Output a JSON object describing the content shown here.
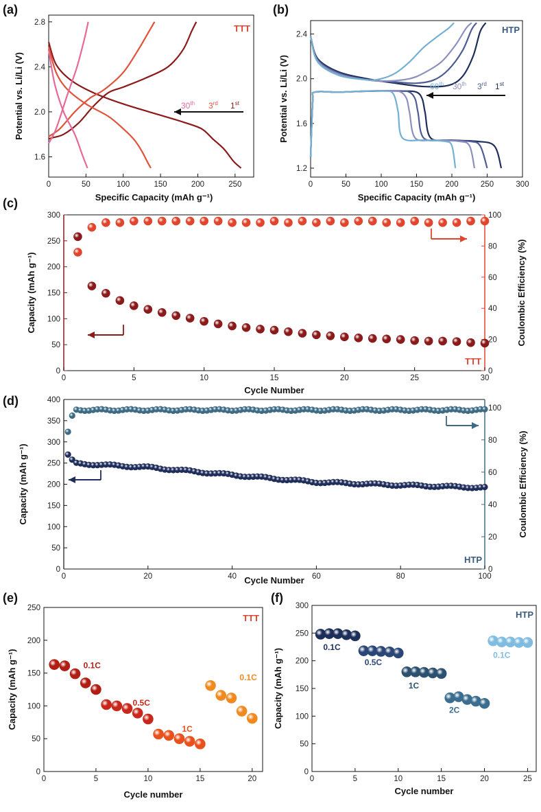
{
  "chart_data": [
    {
      "panel": "a",
      "panel_label": "(a)",
      "type": "line",
      "tag": "TTT",
      "xlabel": "Specific Capacity (mAh g⁻¹)",
      "ylabel": "Potential vs. Li/Li (V)",
      "xlim": [
        0,
        275
      ],
      "ylim": [
        1.42,
        2.86
      ],
      "xticks": [
        "0",
        "50",
        "100",
        "150",
        "200",
        "250"
      ],
      "yticks": [
        "1.6",
        "2.0",
        "2.4",
        "2.8"
      ],
      "arrow_labels": [
        {
          "text": "30",
          "sup": "th"
        },
        {
          "text": "3",
          "sup": "rd"
        },
        {
          "text": "1",
          "sup": "st"
        }
      ],
      "colors": {
        "c1": "#8b1a1a",
        "c3": "#e0533a",
        "c30": "#e7699a",
        "tag": "#e0452e",
        "arrow": "#111111"
      },
      "series": [
        {
          "name": "1st discharge",
          "color": "#8b1a1a",
          "x": [
            0,
            10,
            30,
            60,
            100,
            150,
            180,
            205,
            220,
            235,
            248,
            258
          ],
          "y": [
            2.62,
            2.42,
            2.28,
            2.17,
            2.07,
            1.97,
            1.91,
            1.85,
            1.76,
            1.67,
            1.56,
            1.5
          ]
        },
        {
          "name": "1st charge",
          "color": "#8b1a1a",
          "x": [
            0,
            5,
            20,
            40,
            60,
            80,
            100,
            130,
            160,
            180,
            192,
            198
          ],
          "y": [
            1.76,
            1.77,
            1.8,
            1.9,
            2.05,
            2.17,
            2.22,
            2.3,
            2.4,
            2.55,
            2.72,
            2.8
          ]
        },
        {
          "name": "3rd discharge",
          "color": "#e0533a",
          "x": [
            0,
            10,
            25,
            50,
            80,
            100,
            115,
            125,
            132,
            137
          ],
          "y": [
            2.58,
            2.35,
            2.2,
            2.07,
            1.96,
            1.85,
            1.75,
            1.65,
            1.56,
            1.5
          ]
        },
        {
          "name": "3rd charge",
          "color": "#e0533a",
          "x": [
            0,
            15,
            35,
            55,
            75,
            100,
            120,
            135,
            142
          ],
          "y": [
            1.78,
            1.85,
            2.0,
            2.12,
            2.2,
            2.35,
            2.55,
            2.72,
            2.8
          ]
        },
        {
          "name": "30th discharge",
          "color": "#e7699a",
          "x": [
            0,
            8,
            20,
            35,
            45,
            52
          ],
          "y": [
            2.55,
            2.25,
            2.0,
            1.8,
            1.62,
            1.5
          ]
        },
        {
          "name": "30th charge",
          "color": "#e7699a",
          "x": [
            0,
            10,
            25,
            38,
            48,
            53
          ],
          "y": [
            1.72,
            1.85,
            2.15,
            2.4,
            2.65,
            2.8
          ]
        }
      ]
    },
    {
      "panel": "b",
      "panel_label": "(b)",
      "type": "line",
      "tag": "HTP",
      "xlabel": "Specific Capacity (mAh g⁻¹)",
      "ylabel": "Potential vs. Li/Li (V)",
      "xlim": [
        0,
        300
      ],
      "ylim": [
        1.12,
        2.52
      ],
      "xticks": [
        "0",
        "50",
        "100",
        "150",
        "200",
        "250",
        "300"
      ],
      "yticks": [
        "1.2",
        "1.6",
        "2.0",
        "2.4"
      ],
      "arrow_labels": [
        {
          "text": "60",
          "sup": "th"
        },
        {
          "text": "30",
          "sup": "th"
        },
        {
          "text": "3",
          "sup": "rd"
        },
        {
          "text": "1",
          "sup": "st"
        }
      ],
      "colors": {
        "c1": "#1f2d5a",
        "c3": "#4e5d94",
        "c30": "#8d90bf",
        "c60": "#74b0d4",
        "tag": "#3a5b7c",
        "arrow": "#111111"
      },
      "series": [
        {
          "name": "1st discharge",
          "color": "#1f2d5a",
          "x": [
            0,
            3,
            6,
            40,
            90,
            130,
            150,
            158,
            162,
            170,
            200,
            235,
            260,
            270
          ],
          "y": [
            1.3,
            1.8,
            1.88,
            1.88,
            1.89,
            1.89,
            1.88,
            1.82,
            1.7,
            1.47,
            1.45,
            1.44,
            1.4,
            1.2
          ]
        },
        {
          "name": "1st charge",
          "color": "#1f2d5a",
          "x": [
            0,
            10,
            40,
            80,
            120,
            160,
            195,
            215,
            230,
            240,
            248
          ],
          "y": [
            2.38,
            2.18,
            2.06,
            2.0,
            1.96,
            1.93,
            1.94,
            2.02,
            2.2,
            2.42,
            2.5
          ]
        },
        {
          "name": "3rd discharge",
          "color": "#4e5d94",
          "x": [
            0,
            3,
            6,
            40,
            85,
            125,
            140,
            148,
            152,
            160,
            190,
            225,
            240,
            250
          ],
          "y": [
            1.3,
            1.8,
            1.88,
            1.88,
            1.89,
            1.89,
            1.88,
            1.82,
            1.7,
            1.47,
            1.45,
            1.44,
            1.4,
            1.2
          ]
        },
        {
          "name": "3rd charge",
          "color": "#4e5d94",
          "x": [
            0,
            10,
            40,
            80,
            120,
            150,
            175,
            195,
            215,
            228,
            235
          ],
          "y": [
            2.38,
            2.17,
            2.05,
            1.99,
            1.97,
            1.96,
            1.99,
            2.08,
            2.25,
            2.44,
            2.5
          ]
        },
        {
          "name": "30th discharge",
          "color": "#8d90bf",
          "x": [
            0,
            3,
            6,
            40,
            80,
            115,
            128,
            136,
            140,
            148,
            175,
            210,
            225,
            232
          ],
          "y": [
            1.3,
            1.8,
            1.88,
            1.88,
            1.89,
            1.89,
            1.88,
            1.82,
            1.7,
            1.47,
            1.45,
            1.44,
            1.4,
            1.2
          ]
        },
        {
          "name": "30th charge",
          "color": "#8d90bf",
          "x": [
            0,
            10,
            40,
            80,
            110,
            140,
            160,
            185,
            205,
            220,
            228
          ],
          "y": [
            2.38,
            2.16,
            2.04,
            1.99,
            1.98,
            2.0,
            2.05,
            2.15,
            2.3,
            2.45,
            2.5
          ]
        },
        {
          "name": "60th discharge",
          "color": "#74b0d4",
          "x": [
            0,
            3,
            6,
            40,
            80,
            105,
            115,
            120,
            124,
            130,
            160,
            190,
            200,
            205
          ],
          "y": [
            1.3,
            1.8,
            1.88,
            1.88,
            1.89,
            1.89,
            1.88,
            1.82,
            1.7,
            1.47,
            1.45,
            1.44,
            1.4,
            1.2
          ]
        },
        {
          "name": "60th charge",
          "color": "#74b0d4",
          "x": [
            0,
            10,
            40,
            80,
            100,
            120,
            140,
            160,
            180,
            195,
            203
          ],
          "y": [
            2.38,
            2.15,
            2.03,
            1.99,
            2.0,
            2.05,
            2.15,
            2.28,
            2.38,
            2.45,
            2.5
          ]
        }
      ]
    },
    {
      "panel": "c",
      "panel_label": "(c)",
      "type": "scatter",
      "tag": "TTT",
      "xlabel": "Cycle Number",
      "ylabel": "Capacity (mAh g⁻¹)",
      "y2label": "Coulombic Efficiency (%)",
      "xlim": [
        0,
        30
      ],
      "ylim": [
        0,
        300
      ],
      "y2lim": [
        0,
        100
      ],
      "xticks": [
        "0",
        "5",
        "10",
        "15",
        "20",
        "25",
        "30"
      ],
      "yticks": [
        "0",
        "50",
        "100",
        "150",
        "200",
        "250",
        "300"
      ],
      "y2ticks": [
        "0",
        "20",
        "40",
        "60",
        "80",
        "100"
      ],
      "colors": {
        "capacity": "#8b1a1a",
        "efficiency": "#e0452e",
        "axis_left": "#8b1a1a",
        "axis_right": "#e0452e",
        "tag": "#e0452e"
      },
      "x": [
        1,
        2,
        3,
        4,
        5,
        6,
        7,
        8,
        9,
        10,
        11,
        12,
        13,
        14,
        15,
        16,
        17,
        18,
        19,
        20,
        21,
        22,
        23,
        24,
        25,
        26,
        27,
        28,
        29,
        30
      ],
      "capacity": [
        258,
        163,
        149,
        135,
        125,
        118,
        112,
        106,
        101,
        95,
        90,
        86,
        83,
        80,
        78,
        75,
        72,
        69,
        67,
        65,
        63,
        62,
        61,
        60,
        58,
        57,
        57,
        56,
        54,
        53
      ],
      "efficiency": [
        76,
        92,
        95,
        95,
        96,
        96,
        96,
        96,
        96,
        96,
        96,
        95,
        95,
        95,
        96,
        95,
        96,
        95,
        96,
        95,
        96,
        96,
        95,
        95,
        96,
        95,
        95,
        95,
        96,
        96
      ]
    },
    {
      "panel": "d",
      "panel_label": "(d)",
      "type": "scatter",
      "tag": "HTP",
      "xlabel": "Cycle Number",
      "ylabel": "Capacity (mAh g⁻¹)",
      "y2label": "Coulombic Efficiency (%)",
      "xlim": [
        0,
        100
      ],
      "ylim": [
        0,
        400
      ],
      "y2lim": [
        0,
        105
      ],
      "xticks": [
        "0",
        "20",
        "40",
        "60",
        "80",
        "100"
      ],
      "yticks": [
        "0",
        "50",
        "100",
        "150",
        "200",
        "250",
        "300",
        "350",
        "400"
      ],
      "y2ticks": [
        "0",
        "20",
        "40",
        "60",
        "80",
        "100"
      ],
      "colors": {
        "capacity": "#1f2d5a",
        "efficiency": "#3e6b84",
        "axis": "#3e6b84",
        "tag": "#3a5b7c"
      },
      "capacity_first": [
        270,
        258
      ],
      "capacity_trend": [
        [
          3,
          249
        ],
        [
          20,
          240
        ],
        [
          40,
          222
        ],
        [
          60,
          205
        ],
        [
          80,
          198
        ],
        [
          100,
          192
        ]
      ],
      "efficiency_first": [
        85,
        95
      ],
      "efficiency_plateau": 98.5
    },
    {
      "panel": "e",
      "panel_label": "(e)",
      "type": "scatter",
      "tag": "TTT",
      "xlabel": "Cycle number",
      "ylabel": "Capacity (mAh g⁻¹)",
      "xlim": [
        0,
        21
      ],
      "ylim": [
        0,
        250
      ],
      "xticks": [
        "0",
        "5",
        "10",
        "15",
        "20"
      ],
      "yticks": [
        "0",
        "50",
        "100",
        "150",
        "200",
        "250"
      ],
      "colors": {
        "tag": "#e0452e"
      },
      "groups": [
        {
          "rate": "0.1C",
          "color": "#b01e14",
          "x": [
            1,
            2,
            3,
            4,
            5
          ],
          "y": [
            163,
            161,
            149,
            135,
            125
          ]
        },
        {
          "rate": "0.5C",
          "color": "#c8281c",
          "x": [
            6,
            7,
            8,
            9,
            10
          ],
          "y": [
            102,
            100,
            96,
            89,
            80
          ]
        },
        {
          "rate": "1C",
          "color": "#e8501c",
          "x": [
            11,
            12,
            13,
            14,
            15
          ],
          "y": [
            57,
            55,
            50,
            46,
            42
          ]
        },
        {
          "rate": "0.1C",
          "color": "#f08a20",
          "x": [
            16,
            17,
            18,
            19,
            20
          ],
          "y": [
            131,
            116,
            112,
            92,
            81
          ]
        }
      ]
    },
    {
      "panel": "f",
      "panel_label": "(f)",
      "type": "scatter",
      "tag": "HTP",
      "xlabel": "Cycle number",
      "ylabel": "Capacity (mAh g⁻¹)",
      "xlim": [
        0,
        26
      ],
      "ylim": [
        0,
        300
      ],
      "xticks": [
        "0",
        "5",
        "10",
        "15",
        "20",
        "25"
      ],
      "yticks": [
        "0",
        "50",
        "100",
        "150",
        "200",
        "250",
        "300"
      ],
      "colors": {
        "tag": "#3a5b7c"
      },
      "groups": [
        {
          "rate": "0.1C",
          "color": "#1c2f5a",
          "x": [
            1,
            2,
            3,
            4,
            5
          ],
          "y": [
            248,
            249,
            249,
            247,
            245
          ]
        },
        {
          "rate": "0.5C",
          "color": "#2a4677",
          "x": [
            6,
            7,
            8,
            9,
            10
          ],
          "y": [
            218,
            218,
            217,
            216,
            214
          ]
        },
        {
          "rate": "1C",
          "color": "#2c5170",
          "x": [
            11,
            12,
            13,
            14,
            15
          ],
          "y": [
            180,
            180,
            179,
            178,
            177
          ]
        },
        {
          "rate": "2C",
          "color": "#3a6d90",
          "x": [
            16,
            17,
            18,
            19,
            20
          ],
          "y": [
            133,
            135,
            130,
            127,
            123
          ]
        },
        {
          "rate": "0.1C",
          "color": "#7fbce0",
          "x": [
            21,
            22,
            23,
            24,
            25
          ],
          "y": [
            236,
            234,
            234,
            233,
            233
          ]
        }
      ]
    }
  ]
}
